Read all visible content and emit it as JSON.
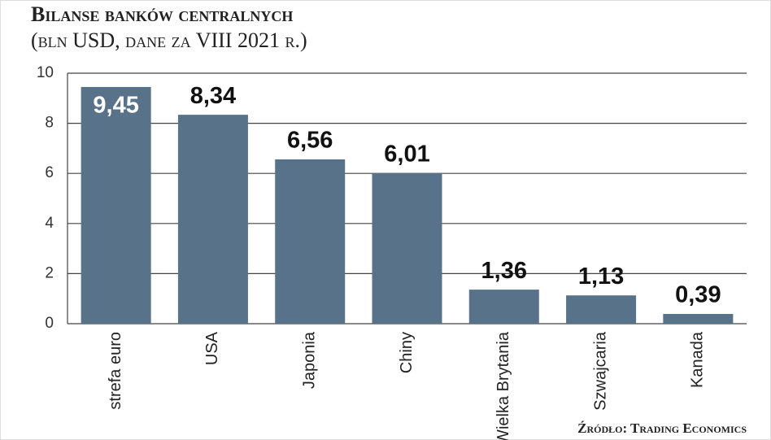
{
  "chart_data": {
    "type": "bar",
    "title": "Bilanse banków centralnych",
    "subtitle": "(bln USD, dane za VIII 2021 r.)",
    "source": "Źródło: Trading Economics",
    "categories": [
      "strefa euro",
      "USA",
      "Japonia",
      "Chiny",
      "Wielka Brytania",
      "Szwajcaria",
      "Kanada"
    ],
    "values": [
      9.45,
      8.34,
      6.56,
      6.01,
      1.36,
      1.13,
      0.39
    ],
    "value_labels": [
      "9,45",
      "8,34",
      "6,56",
      "6,01",
      "1,36",
      "1,13",
      "0,39"
    ],
    "color": "#587289",
    "ylim": [
      0,
      10
    ],
    "yticks": [
      0,
      2,
      4,
      6,
      8,
      10
    ],
    "grid": true
  }
}
